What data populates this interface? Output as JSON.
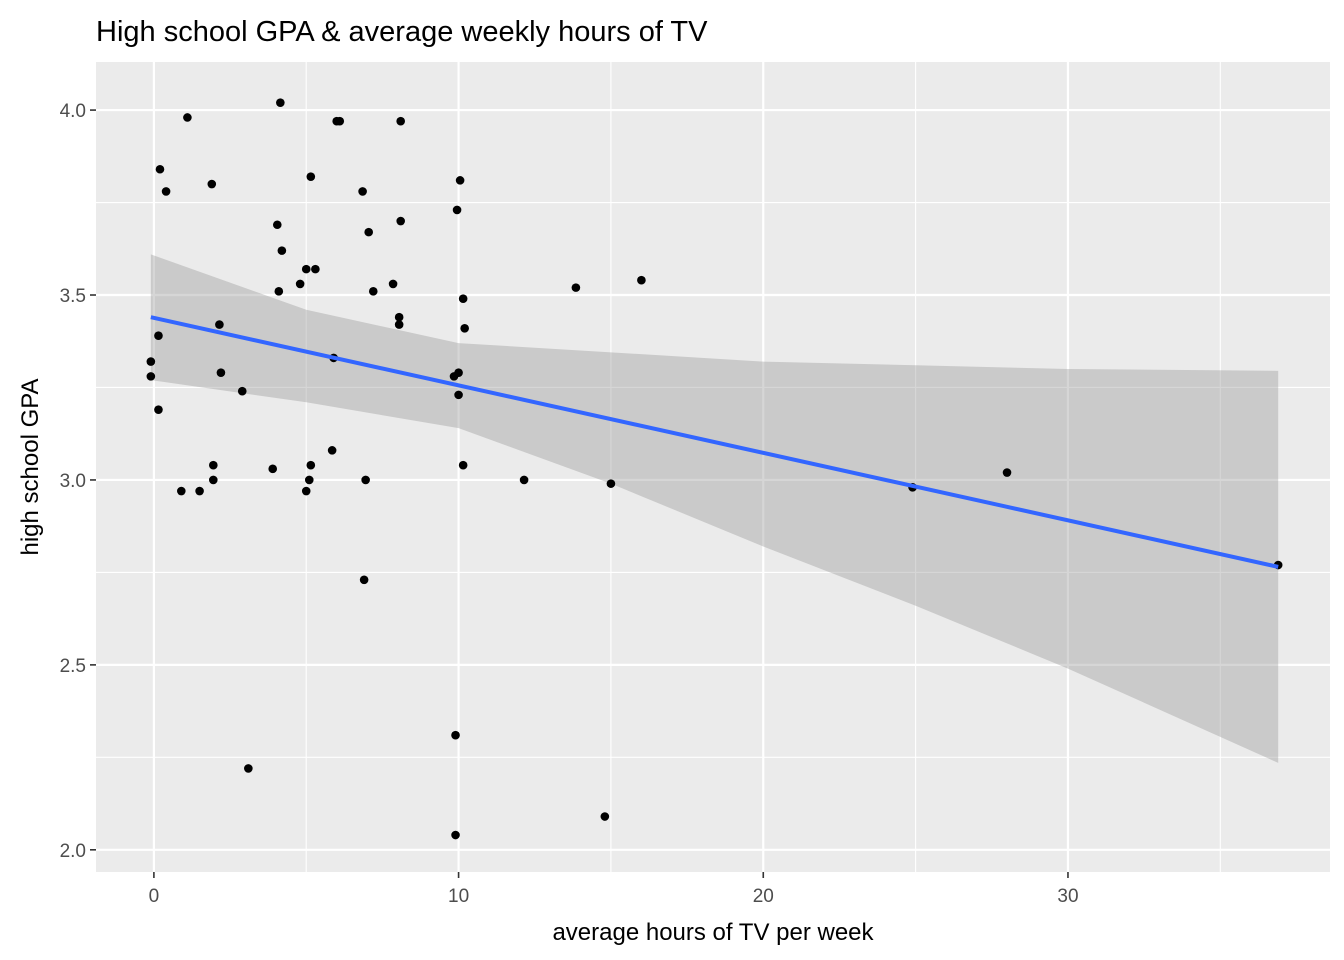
{
  "chart_data": {
    "type": "scatter",
    "title": "High school GPA & average weekly hours of TV",
    "xlabel": "average hours of TV per week",
    "ylabel": "high school GPA",
    "xlim": [
      -1.9,
      38.6
    ],
    "ylim": [
      1.94,
      4.13
    ],
    "x_ticks": [
      0,
      10,
      20,
      30
    ],
    "y_ticks": [
      2.0,
      2.5,
      3.0,
      3.5,
      4.0
    ],
    "y_tick_labels": [
      "2.0",
      "2.5",
      "3.0",
      "3.5",
      "4.0"
    ],
    "grid": true,
    "legend": "none",
    "colors": {
      "panel": "#ebebeb",
      "grid": "#ffffff",
      "points": "#000000",
      "fit_line": "#3366ff",
      "confidence_band": "#999999"
    },
    "points": [
      {
        "x": -0.1,
        "y": 3.32
      },
      {
        "x": -0.1,
        "y": 3.28
      },
      {
        "x": 0.15,
        "y": 3.39
      },
      {
        "x": 0.15,
        "y": 3.19
      },
      {
        "x": 0.2,
        "y": 3.84
      },
      {
        "x": 0.4,
        "y": 3.78
      },
      {
        "x": 0.9,
        "y": 2.97
      },
      {
        "x": 1.1,
        "y": 3.98
      },
      {
        "x": 1.5,
        "y": 2.97
      },
      {
        "x": 1.9,
        "y": 3.8
      },
      {
        "x": 1.95,
        "y": 3.0
      },
      {
        "x": 1.95,
        "y": 3.04
      },
      {
        "x": 2.15,
        "y": 3.42
      },
      {
        "x": 2.2,
        "y": 3.29
      },
      {
        "x": 2.9,
        "y": 3.24
      },
      {
        "x": 3.1,
        "y": 2.22
      },
      {
        "x": 3.9,
        "y": 3.03
      },
      {
        "x": 4.05,
        "y": 3.69
      },
      {
        "x": 4.1,
        "y": 3.51
      },
      {
        "x": 4.15,
        "y": 4.02
      },
      {
        "x": 4.2,
        "y": 3.62
      },
      {
        "x": 4.8,
        "y": 3.53
      },
      {
        "x": 5.0,
        "y": 3.57
      },
      {
        "x": 5.0,
        "y": 2.97
      },
      {
        "x": 5.1,
        "y": 3.0
      },
      {
        "x": 5.15,
        "y": 3.04
      },
      {
        "x": 5.15,
        "y": 3.82
      },
      {
        "x": 5.3,
        "y": 3.57
      },
      {
        "x": 5.85,
        "y": 3.08
      },
      {
        "x": 5.9,
        "y": 3.33
      },
      {
        "x": 6.0,
        "y": 3.97
      },
      {
        "x": 6.1,
        "y": 3.97
      },
      {
        "x": 6.85,
        "y": 3.78
      },
      {
        "x": 6.9,
        "y": 2.73
      },
      {
        "x": 6.95,
        "y": 3.0
      },
      {
        "x": 7.05,
        "y": 3.67
      },
      {
        "x": 7.2,
        "y": 3.51
      },
      {
        "x": 7.85,
        "y": 3.53
      },
      {
        "x": 8.05,
        "y": 3.44
      },
      {
        "x": 8.05,
        "y": 3.42
      },
      {
        "x": 8.1,
        "y": 3.97
      },
      {
        "x": 8.1,
        "y": 3.7
      },
      {
        "x": 9.85,
        "y": 3.28
      },
      {
        "x": 9.9,
        "y": 2.31
      },
      {
        "x": 9.9,
        "y": 2.04
      },
      {
        "x": 9.95,
        "y": 3.73
      },
      {
        "x": 10.0,
        "y": 3.29
      },
      {
        "x": 10.0,
        "y": 3.23
      },
      {
        "x": 10.05,
        "y": 3.81
      },
      {
        "x": 10.15,
        "y": 3.04
      },
      {
        "x": 10.15,
        "y": 3.49
      },
      {
        "x": 10.2,
        "y": 3.41
      },
      {
        "x": 12.15,
        "y": 3.0
      },
      {
        "x": 13.85,
        "y": 3.52
      },
      {
        "x": 14.8,
        "y": 2.09
      },
      {
        "x": 15.0,
        "y": 2.99
      },
      {
        "x": 16.0,
        "y": 3.54
      },
      {
        "x": 24.9,
        "y": 2.98
      },
      {
        "x": 28.0,
        "y": 3.02
      },
      {
        "x": 36.9,
        "y": 2.77
      }
    ],
    "fit_line": {
      "x": [
        -0.1,
        36.9
      ],
      "y": [
        3.44,
        2.765
      ]
    },
    "confidence_band": {
      "x": [
        -0.1,
        5,
        10,
        15,
        20,
        25,
        30,
        36.9
      ],
      "lower": [
        3.27,
        3.21,
        3.14,
        2.99,
        2.82,
        2.66,
        2.49,
        2.235
      ],
      "upper": [
        3.61,
        3.46,
        3.37,
        3.345,
        3.32,
        3.31,
        3.3,
        3.295
      ]
    }
  }
}
